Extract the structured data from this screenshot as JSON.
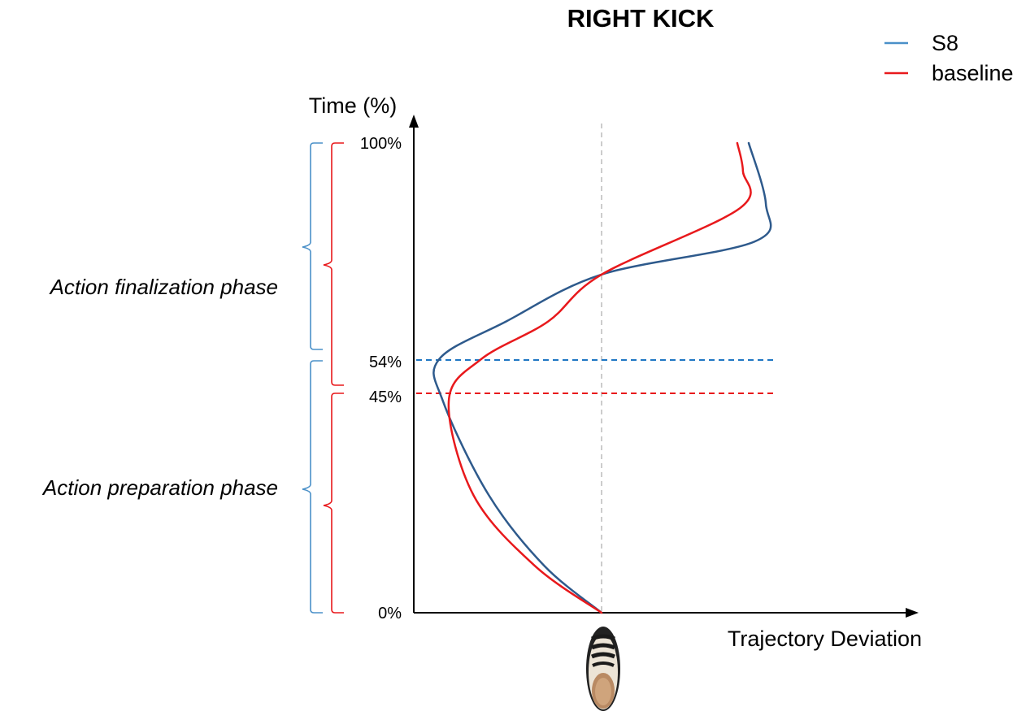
{
  "chart_data": {
    "type": "line",
    "title": "RIGHT KICK",
    "xlabel": "Trajectory Deviation",
    "ylabel": "Time (%)",
    "ylim": [
      0,
      100
    ],
    "y_ticks": [
      {
        "value": 0,
        "label": "0%"
      },
      {
        "value": 45,
        "label": "45%"
      },
      {
        "value": 54,
        "label": "54%"
      },
      {
        "value": 100,
        "label": "100%"
      }
    ],
    "legend_position": "top-right",
    "legend": [
      {
        "name": "S8",
        "color": "#4a90c8"
      },
      {
        "name": "baseline",
        "color": "#e8191c"
      }
    ],
    "series": [
      {
        "name": "S8",
        "color": "#2e5a8c",
        "points": [
          [
            0.0,
            0
          ],
          [
            -0.3,
            10
          ],
          [
            -0.59,
            25
          ],
          [
            -0.83,
            45
          ],
          [
            -0.85,
            54
          ],
          [
            -0.5,
            62
          ],
          [
            0.0,
            72
          ],
          [
            0.8,
            79
          ],
          [
            0.86,
            87
          ],
          [
            0.77,
            100
          ]
        ]
      },
      {
        "name": "baseline",
        "color": "#e8191c",
        "points": [
          [
            0.0,
            0
          ],
          [
            -0.35,
            10
          ],
          [
            -0.67,
            25
          ],
          [
            -0.8,
            45
          ],
          [
            -0.63,
            54
          ],
          [
            -0.28,
            62
          ],
          [
            0.0,
            72
          ],
          [
            0.72,
            86
          ],
          [
            0.74,
            94
          ],
          [
            0.71,
            100
          ]
        ]
      }
    ],
    "reference_lines": [
      {
        "axis": "y",
        "value": 54,
        "color": "#1f77c4",
        "style": "dashed"
      },
      {
        "axis": "y",
        "value": 45,
        "color": "#e8191c",
        "style": "dashed"
      },
      {
        "axis": "x",
        "value": 0,
        "color": "#bbbbbb",
        "style": "dashed"
      }
    ],
    "phases": [
      {
        "label": "Action finalization phase"
      },
      {
        "label": "Action preparation phase"
      }
    ],
    "brackets": [
      {
        "series": "S8",
        "color": "#4a90c8",
        "ranges": [
          [
            54,
            100
          ],
          [
            0,
            54
          ]
        ]
      },
      {
        "series": "baseline",
        "color": "#e8191c",
        "ranges": [
          [
            45,
            100
          ],
          [
            0,
            45
          ]
        ]
      }
    ],
    "icons": [
      "shoe-icon"
    ]
  }
}
